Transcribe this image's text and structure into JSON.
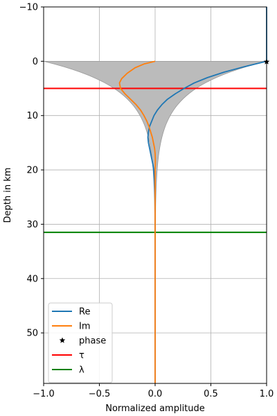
{
  "chart_data": {
    "type": "line",
    "xlabel": "Normalized amplitude",
    "ylabel": "Depth in km",
    "xlim": [
      -1.0,
      1.0
    ],
    "ylim": [
      59.3,
      -10.0
    ],
    "y_inverted": true,
    "grid": true,
    "xticks": [
      "−1.0",
      "−0.5",
      "0.0",
      "0.5",
      "1.0"
    ],
    "xtick_values": [
      -1.0,
      -0.5,
      0.0,
      0.5,
      1.0
    ],
    "yticks": [
      "−10",
      "0",
      "10",
      "20",
      "30",
      "40",
      "50"
    ],
    "ytick_values": [
      -10,
      0,
      10,
      20,
      30,
      40,
      50
    ],
    "legend_position": "lower-left",
    "series": [
      {
        "name": "Re",
        "color": "#1f77b4",
        "style": "line",
        "points": [
          [
            1.0,
            -10
          ],
          [
            1.0,
            -0.5
          ],
          [
            1.0,
            0
          ],
          [
            0.8,
            1.0
          ],
          [
            0.62,
            2.0
          ],
          [
            0.47,
            3.0
          ],
          [
            0.35,
            4.0
          ],
          [
            0.26,
            5.0
          ],
          [
            0.18,
            6.0
          ],
          [
            0.11,
            7.0
          ],
          [
            0.06,
            8.0
          ],
          [
            0.02,
            9.0
          ],
          [
            -0.01,
            10.0
          ],
          [
            -0.03,
            11.0
          ],
          [
            -0.05,
            12.0
          ],
          [
            -0.06,
            13.0
          ],
          [
            -0.065,
            14.0
          ],
          [
            -0.06,
            15.0
          ],
          [
            -0.05,
            16.0
          ],
          [
            -0.04,
            17.0
          ],
          [
            -0.03,
            18.0
          ],
          [
            -0.02,
            19.0
          ],
          [
            -0.012,
            20.0
          ],
          [
            -0.006,
            22.0
          ],
          [
            -0.002,
            24.0
          ],
          [
            0.0,
            26.0
          ],
          [
            0.0,
            59.3
          ]
        ]
      },
      {
        "name": "Im",
        "color": "#ff7f0e",
        "style": "line",
        "points": [
          [
            0.0,
            0
          ],
          [
            -0.1,
            0.5
          ],
          [
            -0.18,
            1.2
          ],
          [
            -0.25,
            2.2
          ],
          [
            -0.3,
            3.2
          ],
          [
            -0.32,
            4.0
          ],
          [
            -0.31,
            5.0
          ],
          [
            -0.27,
            6.0
          ],
          [
            -0.22,
            7.0
          ],
          [
            -0.17,
            8.0
          ],
          [
            -0.13,
            9.0
          ],
          [
            -0.1,
            10.0
          ],
          [
            -0.075,
            11.0
          ],
          [
            -0.055,
            12.0
          ],
          [
            -0.04,
            13.0
          ],
          [
            -0.025,
            14.0
          ],
          [
            -0.015,
            15.0
          ],
          [
            -0.005,
            16.0
          ],
          [
            0.0,
            17.0
          ],
          [
            0.002,
            18.0
          ],
          [
            0.002,
            19.0
          ],
          [
            0.0,
            20.0
          ],
          [
            0.0,
            59.3
          ]
        ]
      },
      {
        "name": "phase",
        "color": "#000000",
        "style": "marker",
        "points": [
          [
            1.0,
            0.1
          ]
        ]
      },
      {
        "name": "τ",
        "color": "#ff0000",
        "style": "hline",
        "y": 5.0
      },
      {
        "name": "λ",
        "color": "#008000",
        "style": "hline",
        "y": 31.5
      }
    ],
    "envelope": {
      "color": "#bbbbbb",
      "skin_depth": 5.0,
      "y_start": 0,
      "y_end": 59.3
    }
  }
}
